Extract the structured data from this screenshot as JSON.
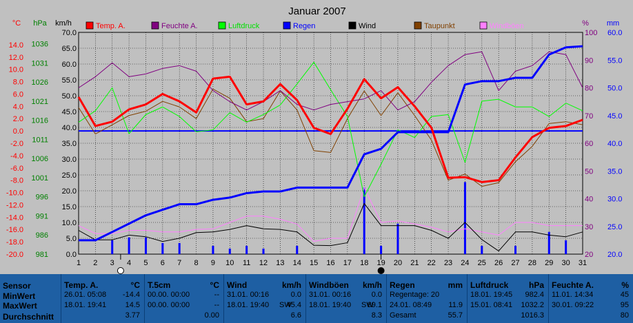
{
  "chart_data": {
    "type": "line",
    "title": "Januar 2007",
    "x": [
      1,
      2,
      3,
      4,
      5,
      6,
      7,
      8,
      9,
      10,
      11,
      12,
      13,
      14,
      15,
      16,
      17,
      18,
      19,
      20,
      21,
      22,
      23,
      24,
      25,
      26,
      27,
      28,
      29,
      30,
      31
    ],
    "axes": {
      "temp": {
        "unit": "°C",
        "range": [
          -20,
          16
        ],
        "ticks": [
          "14.0",
          "12.0",
          "10.0",
          "8.0",
          "6.0",
          "4.0",
          "2.0",
          "0.0",
          "-2.0",
          "-4.0",
          "-6.0",
          "-8.0",
          "-10.0",
          "-12.0",
          "-14.0",
          "-16.0",
          "-18.0",
          "-20.0"
        ]
      },
      "pressure": {
        "unit": "hPa",
        "range": [
          981,
          1039
        ],
        "ticks": [
          "1036",
          "1031",
          "1026",
          "1021",
          "1016",
          "1011",
          "1006",
          "1001",
          "996",
          "991",
          "986",
          "981"
        ]
      },
      "wind": {
        "unit": "km/h",
        "range": [
          0,
          70
        ],
        "ticks": [
          "70.0",
          "65.0",
          "60.0",
          "55.0",
          "50.0",
          "45.0",
          "40.0",
          "35.0",
          "30.0",
          "25.0",
          "20.0",
          "15.0",
          "10.0",
          "5.0",
          "0.0"
        ]
      },
      "humidity": {
        "unit": "%",
        "range": [
          20,
          100
        ],
        "ticks": [
          "100",
          "90",
          "80",
          "70",
          "60",
          "50",
          "40",
          "30",
          "20"
        ]
      },
      "rain": {
        "unit": "mm",
        "range": [
          20,
          60
        ],
        "ticks": [
          "60.0",
          "55.0",
          "50.0",
          "45.0",
          "40.0",
          "35.0",
          "30.0",
          "25.0",
          "20.0"
        ]
      }
    },
    "legend": [
      "Temp. A.",
      "Feuchte A.",
      "Luftdruck",
      "Regen",
      "Wind",
      "Taupunkt",
      "Windböen"
    ],
    "colors": {
      "temp": "#ff0000",
      "humidity": "#800080",
      "pressure": "#00ff00",
      "rain": "#0000ff",
      "wind": "#000000",
      "dewpoint": "#804000",
      "gust": "#ff80ff",
      "zero": "#0000ff"
    },
    "series": [
      {
        "name": "Temp. A.",
        "key": "temp",
        "axis": "temp",
        "width": 3,
        "values": [
          5.5,
          0.8,
          1.5,
          3.5,
          4.3,
          6.0,
          4.8,
          3.0,
          8.5,
          8.8,
          4.3,
          4.8,
          7.6,
          5.0,
          0.5,
          -0.5,
          3.6,
          8.4,
          5.3,
          7.1,
          4.0,
          0.5,
          -7.6,
          -7.5,
          -8.3,
          -8.0,
          -4.3,
          -1.0,
          0.5,
          0.8,
          1.8
        ]
      },
      {
        "name": "Feuchte A.",
        "key": "humidity",
        "axis": "humidity",
        "width": 1,
        "values": [
          80,
          84,
          89,
          84,
          85,
          87,
          88,
          86,
          79,
          75,
          72,
          75,
          79,
          74,
          72,
          74,
          75,
          76,
          79,
          72,
          75,
          82,
          88,
          92,
          93,
          79,
          86,
          88,
          93,
          92,
          80
        ]
      },
      {
        "name": "Luftdruck",
        "key": "pressure",
        "axis": "pressure",
        "width": 1,
        "values": [
          1015.5,
          1018.5,
          1024.5,
          1012.5,
          1017.5,
          1019.5,
          1017,
          1013,
          1013.5,
          1018,
          1015.5,
          1017.5,
          1020,
          1025.5,
          1031.2,
          1024,
          1017,
          996,
          1004.5,
          1013.5,
          1011.5,
          1017,
          1017.5,
          1005,
          1021,
          1021.5,
          1019.5,
          1019.5,
          1017,
          1020.5,
          1018.5
        ]
      },
      {
        "name": "Regen",
        "key": "rain",
        "axis": "rain",
        "width": 3,
        "values": [
          22.5,
          22.5,
          24,
          25.5,
          27,
          28,
          29,
          29,
          29.8,
          30.2,
          31,
          31.3,
          31.3,
          32,
          32,
          32,
          32,
          38,
          39,
          42,
          42,
          42,
          42,
          50.6,
          51.2,
          51.2,
          51.8,
          51.8,
          56,
          57.3,
          57.5
        ]
      },
      {
        "name": "Wind",
        "key": "wind",
        "axis": "wind",
        "width": 1,
        "values": [
          7.5,
          4.5,
          4.5,
          6.0,
          5.5,
          4.0,
          5.0,
          6.8,
          7.0,
          7.8,
          9.0,
          8.0,
          7.8,
          7.0,
          2.8,
          2.7,
          3.6,
          16.0,
          9.0,
          9.0,
          9.0,
          7.5,
          5.0,
          10.0,
          4.6,
          1.0,
          7.0,
          7.0,
          6.0,
          5.5,
          7.0
        ]
      },
      {
        "name": "Taupunkt",
        "key": "dewpoint",
        "axis": "temp",
        "width": 1,
        "values": [
          3.8,
          -0.5,
          1.0,
          2.5,
          3.2,
          4.8,
          3.9,
          2.0,
          6.8,
          5.3,
          1.5,
          2.0,
          6.5,
          3.4,
          -3.2,
          -3.5,
          2.0,
          6.5,
          2.5,
          6.2,
          2.5,
          -1.5,
          -8.0,
          -7.0,
          -9.0,
          -8.4,
          -5.0,
          -2.5,
          1.2,
          1.5,
          1.0
        ]
      },
      {
        "name": "Windböen",
        "key": "gust",
        "axis": "wind",
        "width": 1,
        "values": [
          9.0,
          6.5,
          6.5,
          7.5,
          7.5,
          7.0,
          7.0,
          7.8,
          8.0,
          10.0,
          12.0,
          12.0,
          11.0,
          9.5,
          4.0,
          5.0,
          5.0,
          21.0,
          10.0,
          10.5,
          9.5,
          8.5,
          7.0,
          8.0,
          7.0,
          6.0,
          10.0,
          10.0,
          9.0,
          9.0,
          9.0
        ]
      }
    ],
    "rain_bars": {
      "x": [
        3,
        4,
        5,
        6,
        7,
        9,
        10,
        11,
        12,
        14,
        18,
        19,
        20,
        24,
        25,
        27,
        29,
        30
      ],
      "values": [
        22.5,
        23,
        23,
        22,
        22,
        21.5,
        21,
        21.5,
        21,
        21.5,
        32,
        21.5,
        25.5,
        33,
        21.5,
        21.5,
        24,
        22.5
      ]
    },
    "zero_line": 0.0,
    "markers": [
      {
        "x": 3.5,
        "fill": "#ffffff"
      },
      {
        "x": 19,
        "fill": "#000000"
      }
    ]
  },
  "header": {
    "title": "Januar 2007",
    "unit_temp": "°C",
    "unit_pressure": "hPa",
    "unit_wind": "km/h",
    "unit_humidity": "%",
    "unit_rain": "mm"
  },
  "stats": {
    "labels": {
      "sensor": "Sensor",
      "min": "MinWert",
      "max": "MaxWert",
      "avg": "Durchschnitt"
    },
    "columns": [
      {
        "title": "Temp. A.",
        "unit": "°C",
        "rows": [
          {
            "t": "26.01.  05:08",
            "v": "-14.4"
          },
          {
            "t": "18.01.  19:41",
            "v": "14.5"
          },
          {
            "t": "",
            "v": "3.77"
          }
        ]
      },
      {
        "title": "T.5cm",
        "unit": "°C",
        "rows": [
          {
            "t": "00.00.  00:00",
            "v": "--"
          },
          {
            "t": "00.00.  00:00",
            "v": "--"
          },
          {
            "t": "",
            "v": "0.00"
          }
        ]
      },
      {
        "title": "Wind",
        "unit": "km/h",
        "rows": [
          {
            "t": "31.01.  00:16",
            "v": "0.0"
          },
          {
            "t": "18.01.  19:40",
            "m": "SW",
            "v": "45.4"
          },
          {
            "t": "",
            "v": "6.6"
          }
        ]
      },
      {
        "title": "Windböen",
        "unit": "km/h",
        "rows": [
          {
            "t": "31.01.  00:16",
            "v": "0.0"
          },
          {
            "t": "18.01.  19:40",
            "m": "SW",
            "v": "69.1"
          },
          {
            "t": "",
            "v": "8.3"
          }
        ]
      },
      {
        "title": "Regen",
        "unit": "mm",
        "rows": [
          {
            "t": "Regentage: 20",
            "v": ""
          },
          {
            "t": "24.01.  08:49",
            "v": "11.9"
          },
          {
            "t": "Gesamt",
            "v": "55.7"
          }
        ]
      },
      {
        "title": "Luftdruck",
        "unit": "hPa",
        "rows": [
          {
            "t": "18.01.  19:45",
            "v": "982.4"
          },
          {
            "t": "15.01.  08:41",
            "v": "1032.2"
          },
          {
            "t": "",
            "v": "1016.3"
          }
        ]
      },
      {
        "title": "Feuchte A.",
        "unit": "%",
        "rows": [
          {
            "t": "11.01.  14:34",
            "v": "45"
          },
          {
            "t": "30.01.  09:22",
            "v": "95"
          },
          {
            "t": "",
            "v": "80"
          }
        ]
      }
    ]
  }
}
